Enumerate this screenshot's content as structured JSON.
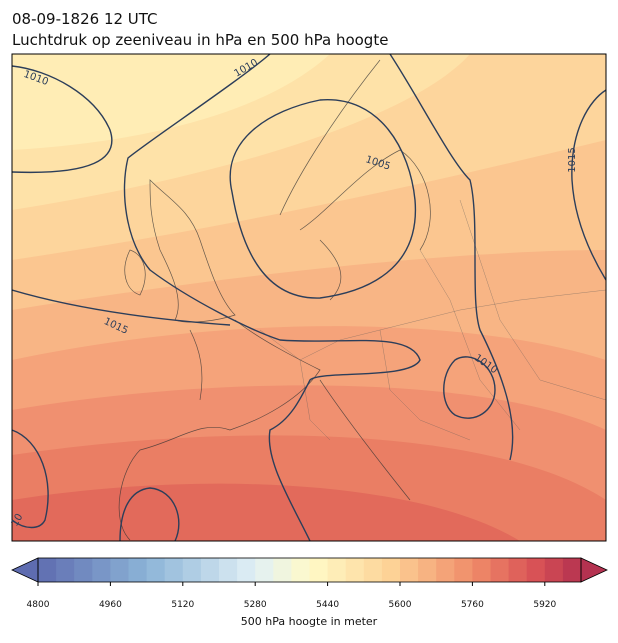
{
  "map": {
    "title": "08-09-1826 12 UTC",
    "subtitle": "Luchtdruk op zeeniveau in hPa en 500 hPa hoogte",
    "contour_labels": [
      1010,
      1010,
      1005,
      1015,
      1015,
      1010,
      10
    ],
    "colorbar": {
      "label": "500 hPa hoogte in meter",
      "range": [
        4800,
        6000
      ],
      "level_step": 40,
      "ticks": [
        4800,
        4960,
        5120,
        5280,
        5440,
        5600,
        5760,
        5920
      ]
    }
  }
}
